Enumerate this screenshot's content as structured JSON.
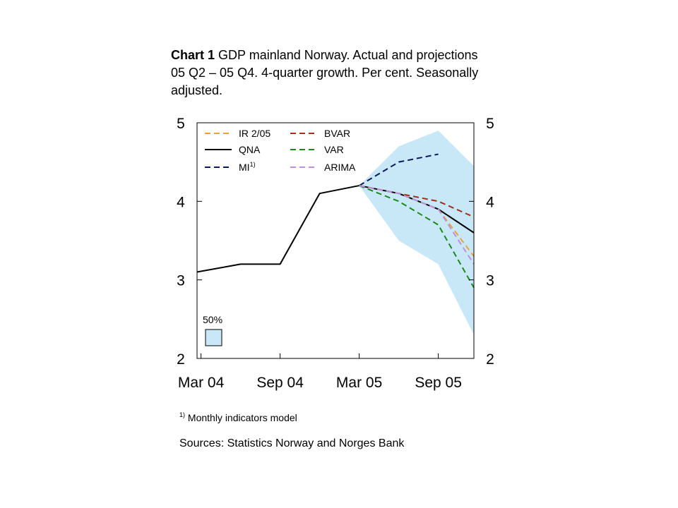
{
  "title": {
    "bold": "Chart 1",
    "text": " GDP mainland Norway. Actual and projections 05 Q2 – 05 Q4. 4-quarter growth. Per cent. Seasonally adjusted."
  },
  "footnote": {
    "marker": "1)",
    "text": " Monthly indicators model"
  },
  "sources": "Sources: Statistics Norway and Norges Bank",
  "band_label": "50%",
  "chart_data": {
    "type": "line",
    "x_labels": [
      "Mar 04",
      "Sep 04",
      "Mar 05",
      "Sep 05"
    ],
    "x_label_months": [
      0,
      6,
      12,
      18
    ],
    "x_range": [
      -0.3,
      20.7
    ],
    "ylim": [
      2,
      5
    ],
    "y_ticks": [
      2,
      3,
      4,
      5
    ],
    "legend": [
      {
        "label": "IR 2/05",
        "color": "#f0a030",
        "dash": "8,5"
      },
      {
        "label": "BVAR",
        "color": "#a0301a",
        "dash": "8,5"
      },
      {
        "label": "QNA",
        "color": "#000000",
        "dash": ""
      },
      {
        "label": "VAR",
        "color": "#1a8a1a",
        "dash": "8,5"
      },
      {
        "label": "MI",
        "sup": "1)",
        "color": "#0a1a5a",
        "dash": "8,5"
      },
      {
        "label": "ARIMA",
        "color": "#c090e0",
        "dash": "8,5"
      }
    ],
    "band": {
      "label": "50%",
      "color": "#c8e8f8",
      "upper": [
        [
          12,
          4.2
        ],
        [
          15,
          4.7
        ],
        [
          18,
          4.9
        ],
        [
          20.7,
          4.45
        ]
      ],
      "lower": [
        [
          12,
          4.2
        ],
        [
          15,
          3.5
        ],
        [
          18,
          3.2
        ],
        [
          20.7,
          2.3
        ]
      ]
    },
    "series": [
      {
        "name": "QNA",
        "color": "#000000",
        "dash": "",
        "width": 2,
        "x": [
          -0.3,
          3,
          6,
          9,
          12,
          15,
          18,
          20.7
        ],
        "y": [
          3.1,
          3.2,
          3.2,
          4.1,
          4.2,
          4.1,
          3.9,
          3.6
        ]
      },
      {
        "name": "IR 2/05",
        "color": "#f0a030",
        "dash": "8,5",
        "width": 2,
        "x": [
          12,
          15,
          18,
          20.7
        ],
        "y": [
          4.2,
          4.1,
          3.9,
          3.3
        ]
      },
      {
        "name": "BVAR",
        "color": "#a0301a",
        "dash": "8,5",
        "width": 2,
        "x": [
          12,
          15,
          18,
          20.7
        ],
        "y": [
          4.2,
          4.1,
          4.0,
          3.8
        ]
      },
      {
        "name": "VAR",
        "color": "#1a8a1a",
        "dash": "8,5",
        "width": 2,
        "x": [
          12,
          15,
          18,
          20.7
        ],
        "y": [
          4.2,
          4.0,
          3.7,
          2.9
        ]
      },
      {
        "name": "MI",
        "color": "#0a1a5a",
        "dash": "8,5",
        "width": 2,
        "x": [
          12,
          15,
          18
        ],
        "y": [
          4.2,
          4.5,
          4.6
        ]
      },
      {
        "name": "ARIMA",
        "color": "#c090e0",
        "dash": "8,5",
        "width": 2,
        "x": [
          12,
          15,
          18,
          20.7
        ],
        "y": [
          4.2,
          4.1,
          3.9,
          3.2
        ]
      }
    ]
  }
}
